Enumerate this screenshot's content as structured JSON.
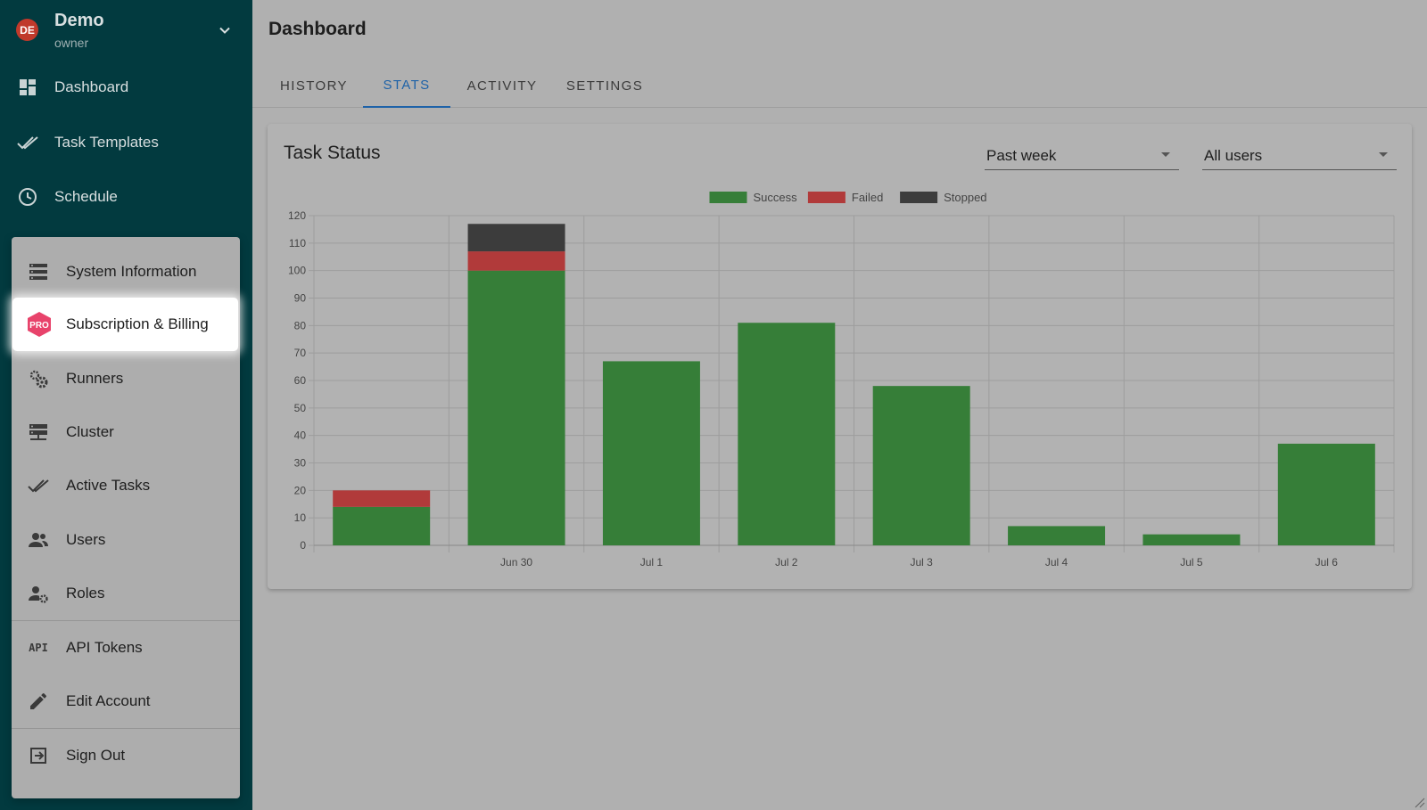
{
  "sidebar": {
    "brand": {
      "initials": "DE",
      "name": "Demo",
      "role": "owner"
    },
    "items": [
      {
        "label": "Dashboard",
        "icon": "dashboard-icon"
      },
      {
        "label": "Task Templates",
        "icon": "double-check-icon"
      },
      {
        "label": "Schedule",
        "icon": "clock-icon"
      }
    ]
  },
  "menu": {
    "items": [
      {
        "label": "System Information",
        "icon": "server-list-icon"
      },
      {
        "label": "Subscription & Billing",
        "icon": "pro-badge-icon",
        "badge": "PRO"
      },
      {
        "label": "Runners",
        "icon": "gears-icon"
      },
      {
        "label": "Cluster",
        "icon": "cluster-icon"
      },
      {
        "label": "Active Tasks",
        "icon": "double-check-icon"
      },
      {
        "label": "Users",
        "icon": "users-icon"
      },
      {
        "label": "Roles",
        "icon": "user-gear-icon"
      },
      {
        "label": "API Tokens",
        "icon": "api-icon",
        "icon_text": "API"
      },
      {
        "label": "Edit Account",
        "icon": "pencil-icon"
      },
      {
        "label": "Sign Out",
        "icon": "sign-out-icon"
      }
    ]
  },
  "main": {
    "title": "Dashboard",
    "tabs": [
      "HISTORY",
      "STATS",
      "ACTIVITY",
      "SETTINGS"
    ],
    "active_tab": "STATS",
    "card": {
      "title": "Task Status",
      "period_select": "Past week",
      "user_select": "All users"
    }
  },
  "colors": {
    "sidebar_bg": "#023a3f",
    "accent": "#1e62a8",
    "success": "#367e38",
    "failed": "#b13a3a",
    "stopped": "#3c3c3c",
    "pro_badge": "#e8436b"
  },
  "chart_data": {
    "type": "bar",
    "stacked": true,
    "categories": [
      "",
      "Jun 30",
      "Jul 1",
      "Jul 2",
      "Jul 3",
      "Jul 4",
      "Jul 5",
      "Jul 6"
    ],
    "series": [
      {
        "name": "Success",
        "color": "#367e38",
        "values": [
          14,
          100,
          67,
          81,
          58,
          7,
          4,
          37
        ]
      },
      {
        "name": "Failed",
        "color": "#b13a3a",
        "values": [
          6,
          7,
          0,
          0,
          0,
          0,
          0,
          0
        ]
      },
      {
        "name": "Stopped",
        "color": "#3c3c3c",
        "values": [
          0,
          10,
          0,
          0,
          0,
          0,
          0,
          0
        ]
      }
    ],
    "ylim": [
      0,
      120
    ],
    "yticks": [
      0,
      10,
      20,
      30,
      40,
      50,
      60,
      70,
      80,
      90,
      100,
      110,
      120
    ],
    "legend_position": "top",
    "grid": true
  }
}
